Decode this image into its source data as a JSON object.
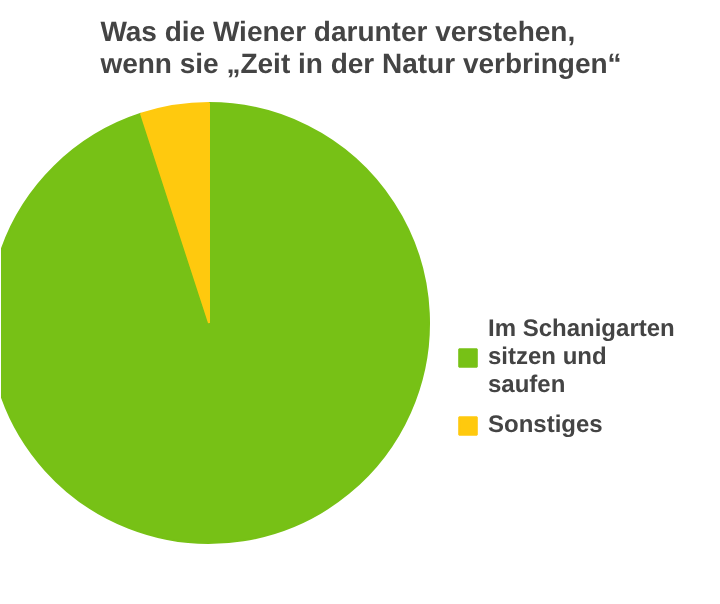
{
  "chart_data": {
    "type": "pie",
    "title": "Was die Wiener darunter verstehen,\nwenn sie „Zeit in der Natur verbringen“",
    "categories": [
      "Im Schanigarten sitzen und saufen",
      "Sonstiges"
    ],
    "values": [
      95,
      5
    ],
    "colors": [
      "#77c116",
      "#ffc90e"
    ],
    "legend": "right"
  }
}
